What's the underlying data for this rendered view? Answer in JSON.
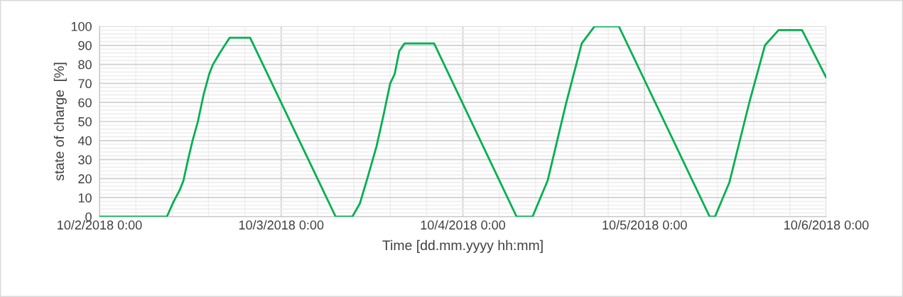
{
  "chart_data": {
    "type": "line",
    "xlabel": "Time [dd.mm.yyyy hh:mm]",
    "ylabel": "state of charge  [%]",
    "x": [
      "2018-10-02T00:00",
      "2018-10-02T08:54",
      "2018-10-02T09:48",
      "2018-10-02T10:36",
      "2018-10-02T11:06",
      "2018-10-02T11:42",
      "2018-10-02T12:18",
      "2018-10-02T13:00",
      "2018-10-02T13:45",
      "2018-10-02T14:30",
      "2018-10-02T15:00",
      "2018-10-02T15:54",
      "2018-10-02T17:12",
      "2018-10-02T19:54",
      "2018-10-03T07:12",
      "2018-10-03T09:24",
      "2018-10-03T10:24",
      "2018-10-03T11:18",
      "2018-10-03T12:36",
      "2018-10-03T13:30",
      "2018-10-03T14:24",
      "2018-10-03T15:00",
      "2018-10-03T15:36",
      "2018-10-03T16:18",
      "2018-10-03T20:12",
      "2018-10-04T07:06",
      "2018-10-04T09:12",
      "2018-10-04T11:12",
      "2018-10-04T13:36",
      "2018-10-04T15:42",
      "2018-10-04T17:24",
      "2018-10-04T20:36",
      "2018-10-05T08:36",
      "2018-10-05T09:18",
      "2018-10-05T11:12",
      "2018-10-05T13:54",
      "2018-10-05T15:54",
      "2018-10-05T17:42",
      "2018-10-05T20:48",
      "2018-10-06T00:00"
    ],
    "series": [
      {
        "color": "#00b050",
        "values": [
          0,
          0,
          8,
          14,
          19,
          30,
          40,
          50,
          64,
          75,
          80,
          86,
          94,
          94,
          0,
          0,
          7,
          19,
          37,
          53,
          70,
          75,
          87,
          91,
          91,
          0,
          0,
          19,
          59,
          91,
          100,
          100,
          0,
          0,
          18,
          61,
          90,
          98,
          98,
          73
        ]
      }
    ],
    "xlim": [
      "2018-10-02T00:00",
      "2018-10-06T00:00"
    ],
    "xticks": [
      {
        "value": "2018-10-02T00:00",
        "label": "10/2/2018 0:00"
      },
      {
        "value": "2018-10-03T00:00",
        "label": "10/3/2018 0:00"
      },
      {
        "value": "2018-10-04T00:00",
        "label": "10/4/2018 0:00"
      },
      {
        "value": "2018-10-05T00:00",
        "label": "10/5/2018 0:00"
      },
      {
        "value": "2018-10-06T00:00",
        "label": "10/6/2018 0:00"
      }
    ],
    "ylim": [
      0,
      100
    ],
    "yticks": [
      0,
      10,
      20,
      30,
      40,
      50,
      60,
      70,
      80,
      90,
      100
    ],
    "grid": true,
    "legend": false,
    "marker": "none",
    "line_style": "solid"
  }
}
